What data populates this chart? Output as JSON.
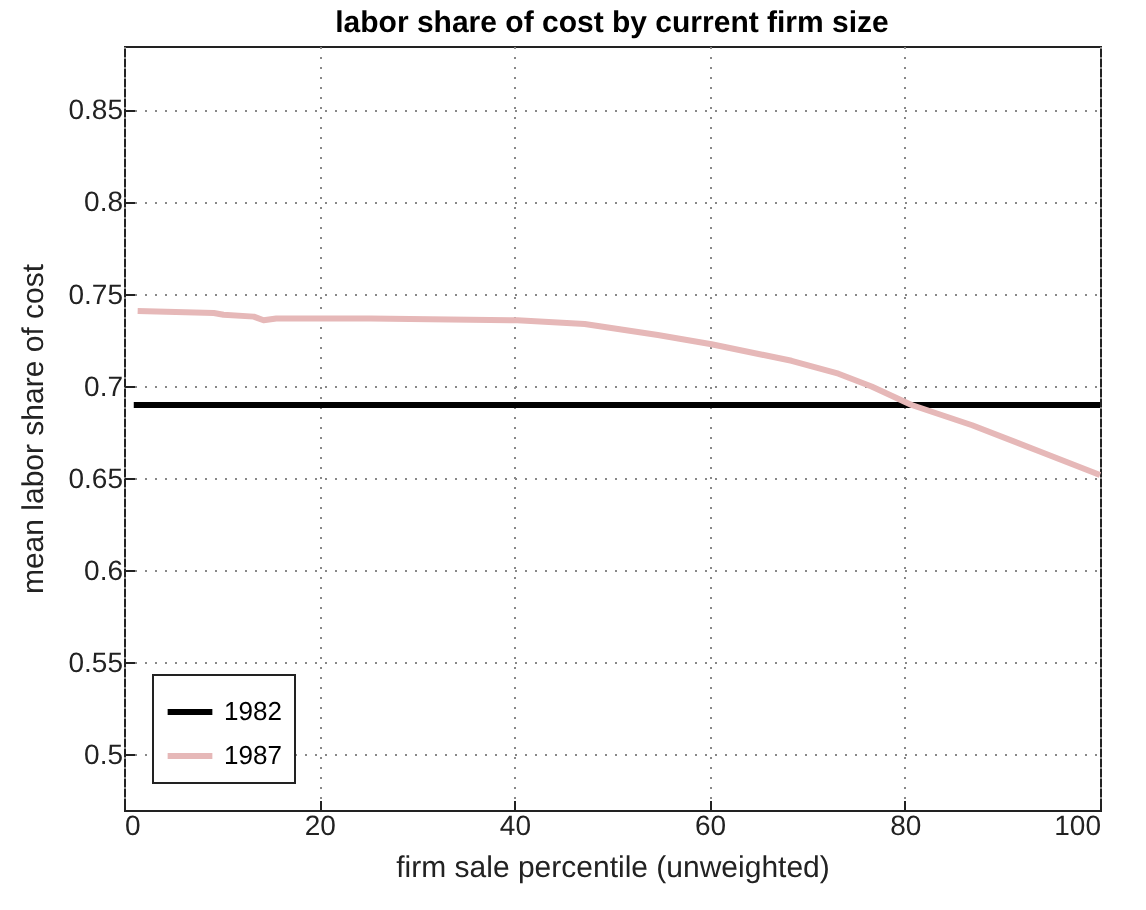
{
  "chart_data": {
    "type": "line",
    "title": "labor share of cost by current firm size",
    "xlabel": "firm sale percentile (unweighted)",
    "ylabel": "mean labor share of cost",
    "xlim": [
      0,
      100
    ],
    "xticks": [
      0,
      20,
      40,
      60,
      80,
      100
    ],
    "ylim": [
      0.47,
      0.885
    ],
    "yticks": [
      0.5,
      0.55,
      0.6,
      0.65,
      0.7,
      0.75,
      0.8,
      0.85
    ],
    "grid": true,
    "legend": "bottom left",
    "series": [
      {
        "name": "1982",
        "color": "#000000",
        "x": [
          1,
          100
        ],
        "values": [
          0.69,
          0.69
        ]
      },
      {
        "name": "1987",
        "color": "#e6b8b8",
        "x": [
          1.4,
          9.2,
          10.2,
          13.3,
          14.3,
          15.6,
          25.2,
          40.3,
          47.2,
          54.7,
          60.2,
          68.4,
          73.2,
          76.6,
          80.7,
          86.9,
          93.7,
          100
        ],
        "values": [
          0.741,
          0.74,
          0.739,
          0.738,
          0.736,
          0.737,
          0.737,
          0.736,
          0.734,
          0.728,
          0.723,
          0.714,
          0.707,
          0.7,
          0.69,
          0.679,
          0.665,
          0.652
        ]
      }
    ]
  }
}
